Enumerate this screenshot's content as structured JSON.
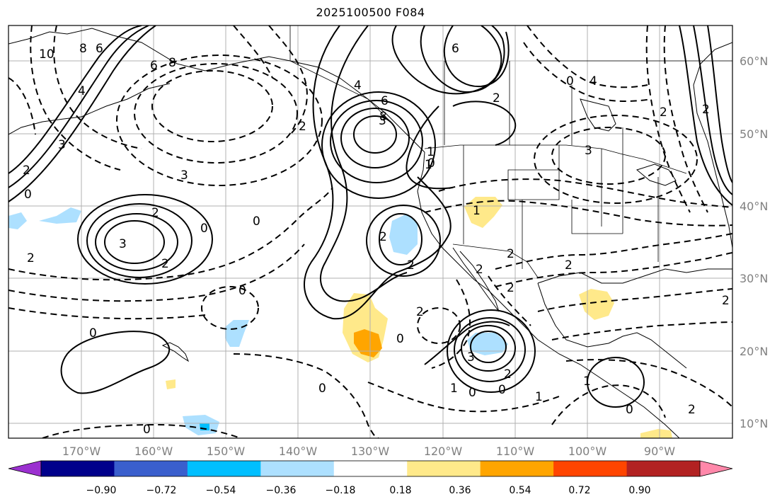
{
  "title": "2025100500 F084",
  "longitude_labels": [
    "170°W",
    "160°W",
    "150°W",
    "140°W",
    "130°W",
    "120°W",
    "110°W",
    "100°W",
    "90°W"
  ],
  "latitude_labels": [
    "60°N",
    "50°N",
    "40°N",
    "30°N",
    "20°N",
    "10°N"
  ],
  "colorbar": {
    "tick_labels": [
      "−0.90",
      "−0.72",
      "−0.54",
      "−0.36",
      "−0.18",
      "0.18",
      "0.36",
      "0.54",
      "0.72",
      "0.90"
    ],
    "colors": [
      "#9b30d0",
      "#00008b",
      "#3a5fcd",
      "#00bfff",
      "#ade0ff",
      "#ffffff",
      "#ffe98a",
      "#ffa500",
      "#ff4500",
      "#b22222",
      "#ff88aa"
    ]
  },
  "contour_labels": [
    "10",
    "8",
    "6",
    "6",
    "8",
    "4",
    "3",
    "3",
    "2",
    "2",
    "0",
    "3",
    "2",
    "0",
    "2",
    "0",
    "0",
    "3",
    "2",
    "2",
    "1",
    "0",
    "2",
    "0",
    "4",
    "6",
    "8",
    "0",
    "2",
    "2",
    "1",
    "2",
    "2",
    "3",
    "6",
    "2",
    "0",
    "4",
    "2",
    "2",
    "1",
    "0",
    "2",
    "2",
    "2",
    "2",
    "1",
    "3",
    "0",
    "1",
    "0",
    "1",
    "0",
    "0"
  ],
  "colors": {
    "land_border": "#000000",
    "grid": "#b0b0b0",
    "positive_shade": "#ffe98a",
    "negative_shade": "#ade0ff"
  }
}
